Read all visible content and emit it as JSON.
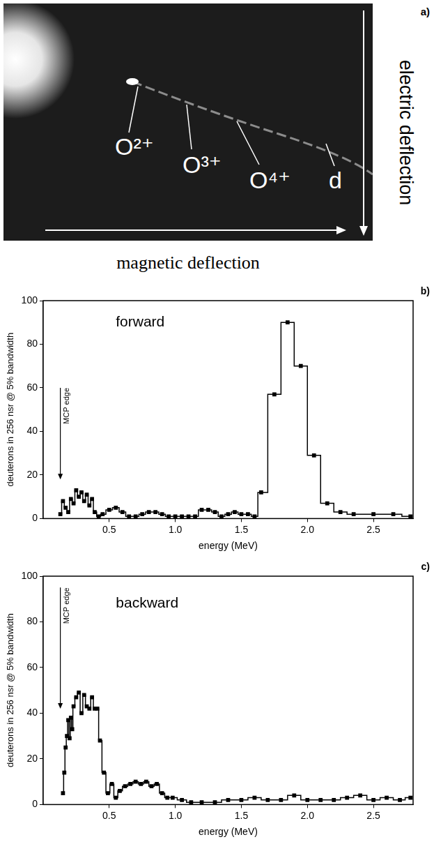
{
  "image_panel": {
    "panel_label": "a)",
    "labels": [
      "O²⁺",
      "O³⁺",
      "O⁴⁺",
      "d"
    ],
    "x_arrow_label": "magnetic deflection",
    "y_arrow_label": "electric deflection"
  },
  "chart_data": [
    {
      "type": "line",
      "panel_label": "b)",
      "annotations": [
        {
          "text": "forward",
          "x": 0.55,
          "y": 90
        },
        {
          "text": "MCP edge",
          "x": 0.13,
          "y": 60,
          "arrow_to": 18
        }
      ],
      "xlabel": "energy (MeV)",
      "ylabel": "deuterons in 256 nsr @ 5% bandwidth",
      "x": [
        0.13,
        0.15,
        0.17,
        0.19,
        0.21,
        0.23,
        0.25,
        0.27,
        0.29,
        0.31,
        0.33,
        0.35,
        0.37,
        0.39,
        0.42,
        0.45,
        0.5,
        0.55,
        0.6,
        0.65,
        0.7,
        0.75,
        0.8,
        0.85,
        0.9,
        0.95,
        1.0,
        1.05,
        1.1,
        1.15,
        1.2,
        1.25,
        1.3,
        1.35,
        1.4,
        1.45,
        1.5,
        1.55,
        1.6,
        1.65,
        1.75,
        1.85,
        1.95,
        2.05,
        2.15,
        2.25,
        2.35,
        2.5,
        2.65,
        2.78
      ],
      "values": [
        2,
        8,
        5,
        3,
        9,
        7,
        13,
        10,
        12,
        8,
        11,
        6,
        9,
        3,
        1,
        2,
        4,
        5,
        3,
        1,
        1,
        2,
        3,
        3,
        2,
        1,
        1,
        1,
        1,
        1,
        4,
        4,
        3,
        1,
        2,
        3,
        2,
        2,
        1,
        12,
        57,
        90,
        70,
        29,
        7,
        3,
        2,
        2,
        2,
        1
      ],
      "color": "#000000",
      "marker": "square",
      "line_style": "step",
      "xlim": [
        0,
        2.8
      ],
      "ylim": [
        0,
        100
      ],
      "xticks": [
        0.5,
        {
          "value": 1,
          "label": "1.0"
        },
        1.5,
        {
          "value": 2,
          "label": "2.0"
        },
        2.5
      ],
      "yticks": [
        0,
        20,
        40,
        60,
        80,
        100
      ],
      "grid": false
    },
    {
      "type": "line",
      "panel_label": "c)",
      "annotations": [
        {
          "text": "backward",
          "x": 0.55,
          "y": 88
        },
        {
          "text": "MCP edge",
          "x": 0.13,
          "y": 95,
          "arrow_to": 42
        }
      ],
      "xlabel": "energy (MeV)",
      "ylabel": "deuterons in 256 nsr @ 5% bandwidth",
      "x": [
        0.15,
        0.16,
        0.17,
        0.18,
        0.19,
        0.2,
        0.21,
        0.22,
        0.23,
        0.25,
        0.27,
        0.29,
        0.31,
        0.33,
        0.35,
        0.37,
        0.39,
        0.41,
        0.43,
        0.46,
        0.49,
        0.52,
        0.55,
        0.58,
        0.62,
        0.66,
        0.7,
        0.74,
        0.78,
        0.82,
        0.86,
        0.9,
        0.94,
        0.98,
        1.05,
        1.12,
        1.2,
        1.3,
        1.4,
        1.5,
        1.6,
        1.7,
        1.8,
        1.9,
        2.0,
        2.1,
        2.2,
        2.3,
        2.4,
        2.5,
        2.6,
        2.7,
        2.78
      ],
      "values": [
        5,
        14,
        25,
        30,
        37,
        29,
        38,
        33,
        43,
        47,
        49,
        40,
        48,
        43,
        42,
        47,
        42,
        42,
        28,
        14,
        5,
        9,
        3,
        6,
        8,
        9,
        10,
        9,
        10,
        8,
        9,
        5,
        3,
        3,
        2,
        1,
        1,
        1,
        2,
        2,
        3,
        2,
        2,
        4,
        2,
        2,
        2,
        3,
        4,
        2,
        3,
        2,
        3
      ],
      "color": "#000000",
      "marker": "square",
      "line_style": "step",
      "xlim": [
        0,
        2.8
      ],
      "ylim": [
        0,
        100
      ],
      "xticks": [
        0.5,
        {
          "value": 1,
          "label": "1.0"
        },
        1.5,
        {
          "value": 2,
          "label": "2.0"
        },
        2.5
      ],
      "yticks": [
        0,
        20,
        40,
        60,
        80,
        100
      ],
      "grid": false
    }
  ]
}
